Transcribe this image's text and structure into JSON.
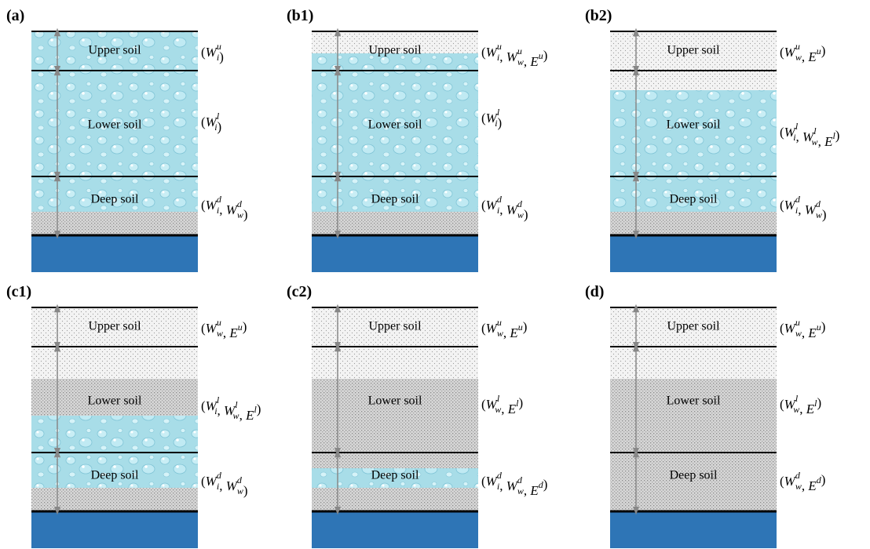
{
  "notation": {
    "open": "(",
    "separator": ", ",
    "close": ")"
  },
  "panels": [
    {
      "label": "(a)",
      "layers": [
        {
          "name": "Upper soil",
          "terms": [
            {
              "base": "W",
              "sub": "i",
              "sup": "u"
            }
          ]
        },
        {
          "name": "Lower soil",
          "terms": [
            {
              "base": "W",
              "sub": "i",
              "sup": "l"
            }
          ]
        },
        {
          "name": "Deep soil",
          "terms": [
            {
              "base": "W",
              "sub": "i",
              "sup": "d"
            },
            {
              "base": "W",
              "sub": "w",
              "sup": "d"
            }
          ]
        }
      ]
    },
    {
      "label": "(b1)",
      "layers": [
        {
          "name": "Upper soil",
          "terms": [
            {
              "base": "W",
              "sub": "i",
              "sup": "u"
            },
            {
              "base": "W",
              "sub": "w",
              "sup": "u"
            },
            {
              "base": "E",
              "sup": "u"
            }
          ]
        },
        {
          "name": "Lower soil",
          "terms": [
            {
              "base": "W",
              "sub": "i",
              "sup": "l"
            }
          ]
        },
        {
          "name": "Deep soil",
          "terms": [
            {
              "base": "W",
              "sub": "i",
              "sup": "d"
            },
            {
              "base": "W",
              "sub": "w",
              "sup": "d"
            }
          ]
        }
      ]
    },
    {
      "label": "(b2)",
      "layers": [
        {
          "name": "Upper soil",
          "terms": [
            {
              "base": "W",
              "sub": "w",
              "sup": "u"
            },
            {
              "base": "E",
              "sup": "u"
            }
          ]
        },
        {
          "name": "Lower soil",
          "terms": [
            {
              "base": "W",
              "sub": "i",
              "sup": "l"
            },
            {
              "base": "W",
              "sub": "w",
              "sup": "l"
            },
            {
              "base": "E",
              "sup": "l"
            }
          ]
        },
        {
          "name": "Deep soil",
          "terms": [
            {
              "base": "W",
              "sub": "i",
              "sup": "d"
            },
            {
              "base": "W",
              "sub": "w",
              "sup": "d"
            }
          ]
        }
      ]
    },
    {
      "label": "(c1)",
      "layers": [
        {
          "name": "Upper soil",
          "terms": [
            {
              "base": "W",
              "sub": "w",
              "sup": "u"
            },
            {
              "base": "E",
              "sup": "u"
            }
          ]
        },
        {
          "name": "Lower soil",
          "terms": [
            {
              "base": "W",
              "sub": "i",
              "sup": "l"
            },
            {
              "base": "W",
              "sub": "w",
              "sup": "l"
            },
            {
              "base": "E",
              "sup": "l"
            }
          ]
        },
        {
          "name": "Deep soil",
          "terms": [
            {
              "base": "W",
              "sub": "i",
              "sup": "d"
            },
            {
              "base": "W",
              "sub": "w",
              "sup": "d"
            }
          ]
        }
      ]
    },
    {
      "label": "(c2)",
      "layers": [
        {
          "name": "Upper soil",
          "terms": [
            {
              "base": "W",
              "sub": "w",
              "sup": "u"
            },
            {
              "base": "E",
              "sup": "u"
            }
          ]
        },
        {
          "name": "Lower soil",
          "terms": [
            {
              "base": "W",
              "sub": "w",
              "sup": "l"
            },
            {
              "base": "E",
              "sup": "l"
            }
          ]
        },
        {
          "name": "Deep soil",
          "terms": [
            {
              "base": "W",
              "sub": "i",
              "sup": "d"
            },
            {
              "base": "W",
              "sub": "w",
              "sup": "d"
            },
            {
              "base": "E",
              "sup": "d"
            }
          ]
        }
      ]
    },
    {
      "label": "(d)",
      "layers": [
        {
          "name": "Upper soil",
          "terms": [
            {
              "base": "W",
              "sub": "w",
              "sup": "u"
            },
            {
              "base": "E",
              "sup": "u"
            }
          ]
        },
        {
          "name": "Lower soil",
          "terms": [
            {
              "base": "W",
              "sub": "w",
              "sup": "l"
            },
            {
              "base": "E",
              "sup": "l"
            }
          ]
        },
        {
          "name": "Deep soil",
          "terms": [
            {
              "base": "W",
              "sub": "w",
              "sup": "d"
            },
            {
              "base": "E",
              "sup": "d"
            }
          ]
        }
      ]
    }
  ]
}
